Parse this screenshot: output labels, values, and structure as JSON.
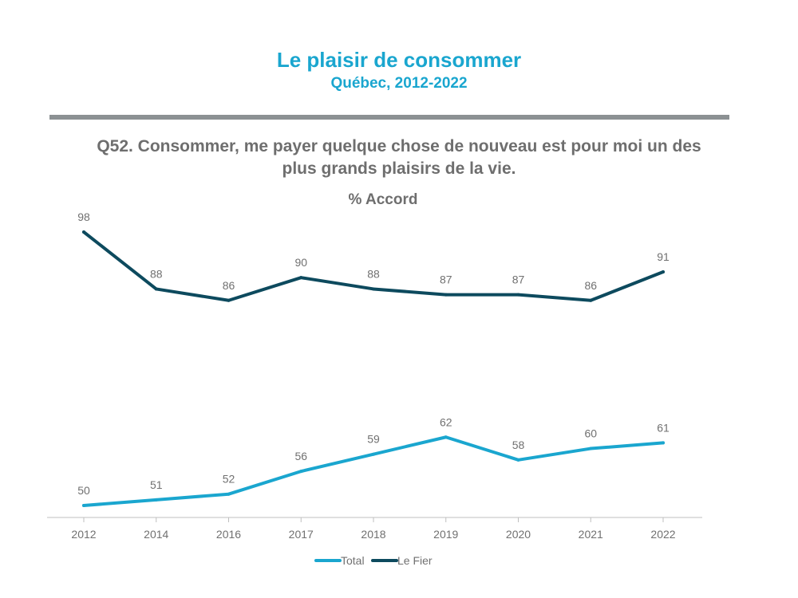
{
  "header": {
    "title": "Le plaisir de consommer",
    "subtitle": "Québec, 2012-2022"
  },
  "question": {
    "line1": "Q52. Consommer, me payer quelque chose de nouveau est pour moi un des",
    "line2": "plus grands plaisirs de la vie."
  },
  "colors": {
    "accent": "#1aa6cf",
    "total": "#1aa6cf",
    "le_fier": "#0d4a5e",
    "rule": "#8c9193",
    "text_grey": "#6e6e6e"
  },
  "chart_data": {
    "type": "line",
    "title": "% Accord",
    "xlabel": "",
    "ylabel": "",
    "categories": [
      "2012",
      "2014",
      "2016",
      "2017",
      "2018",
      "2019",
      "2020",
      "2021",
      "2022"
    ],
    "ylim": [
      48,
      100
    ],
    "grid": false,
    "legend_position": "bottom-center",
    "series": [
      {
        "name": "Total",
        "color": "#1aa6cf",
        "values": [
          50,
          51,
          52,
          56,
          59,
          62,
          58,
          60,
          61
        ]
      },
      {
        "name": "Le Fier",
        "color": "#0d4a5e",
        "values": [
          98,
          88,
          86,
          90,
          88,
          87,
          87,
          86,
          91
        ]
      }
    ]
  }
}
